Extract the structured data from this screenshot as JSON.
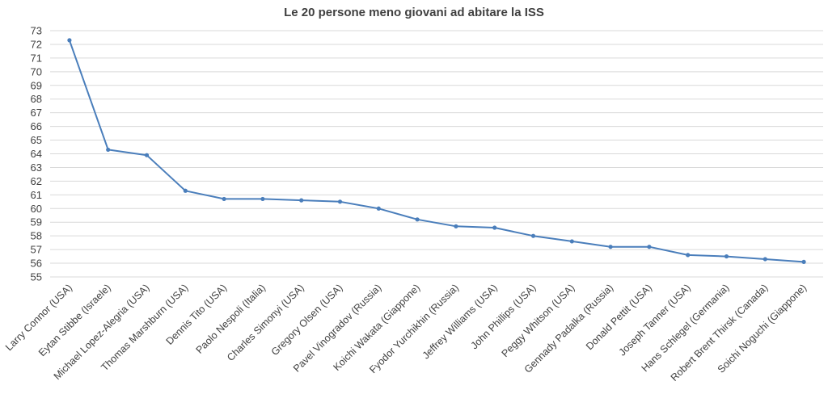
{
  "chart_data": {
    "type": "line",
    "title": "Le 20 persone meno giovani ad abitare la ISS",
    "xlabel": "",
    "ylabel": "",
    "ylim": [
      55,
      73
    ],
    "yticks": [
      55,
      56,
      57,
      58,
      59,
      60,
      61,
      62,
      63,
      64,
      65,
      66,
      67,
      68,
      69,
      70,
      71,
      72,
      73
    ],
    "grid": true,
    "legend": "none",
    "categories": [
      "Larry Connor (USA)",
      "Eytan Stibbe (Israele)",
      "Michael Lopez-Alegria (USA)",
      "Thomas Marshburn (USA)",
      "Dennis Tito (USA)",
      "Paolo Nespoli (Italia)",
      "Charles Simonyi (USA)",
      "Gregory Olsen (USA)",
      "Pavel Vinogradov (Russia)",
      "Koichi Wakata (Giappone)",
      "Fyodor Yurchikhin (Russia)",
      "Jeffrey Williams (USA)",
      "John Phillips (USA)",
      "Peggy Whitson (USA)",
      "Gennady Padalka (Russia)",
      "Donald Pettit (USA)",
      "Joseph Tanner (USA)",
      "Hans Schlegel (Germania)",
      "Robert Brent Thirsk (Canada)",
      "Soichi Noguchi (Giappone)"
    ],
    "series": [
      {
        "color": "#4a7ebb",
        "values": [
          72.3,
          64.3,
          63.9,
          61.3,
          60.7,
          60.7,
          60.6,
          60.5,
          60.0,
          59.2,
          58.7,
          58.6,
          58.0,
          57.6,
          57.2,
          57.2,
          56.6,
          56.5,
          56.3,
          56.1
        ]
      }
    ]
  }
}
